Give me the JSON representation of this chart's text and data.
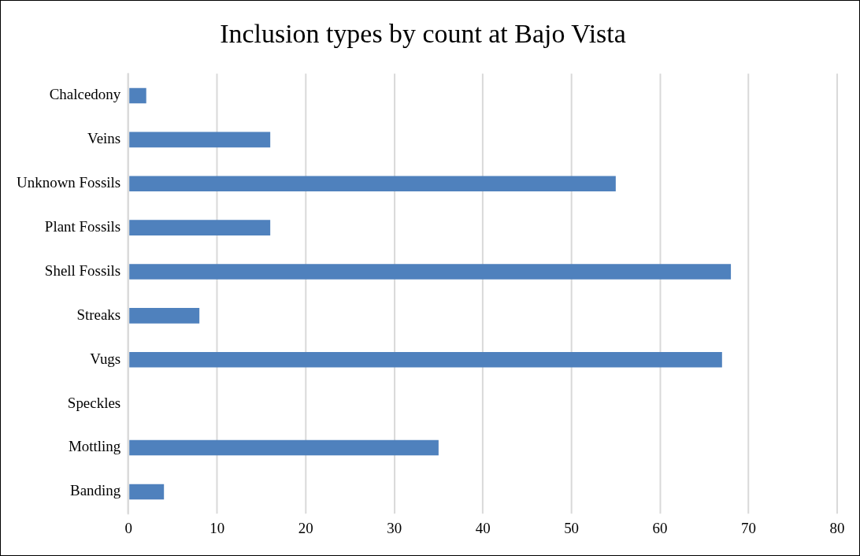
{
  "chart_data": {
    "type": "bar",
    "orientation": "horizontal",
    "title": "Inclusion types by count at Bajo Vista",
    "categories": [
      "Chalcedony",
      "Veins",
      "Unknown Fossils",
      "Plant Fossils",
      "Shell Fossils",
      "Streaks",
      "Vugs",
      "Speckles",
      "Mottling",
      "Banding"
    ],
    "values": [
      2,
      16,
      55,
      16,
      68,
      8,
      67,
      0,
      35,
      4
    ],
    "color": "#4f81bd",
    "xlim": [
      0,
      80
    ],
    "xticks": [
      0,
      10,
      20,
      30,
      40,
      50,
      60,
      70,
      80
    ],
    "grid": "x",
    "legend": false
  }
}
